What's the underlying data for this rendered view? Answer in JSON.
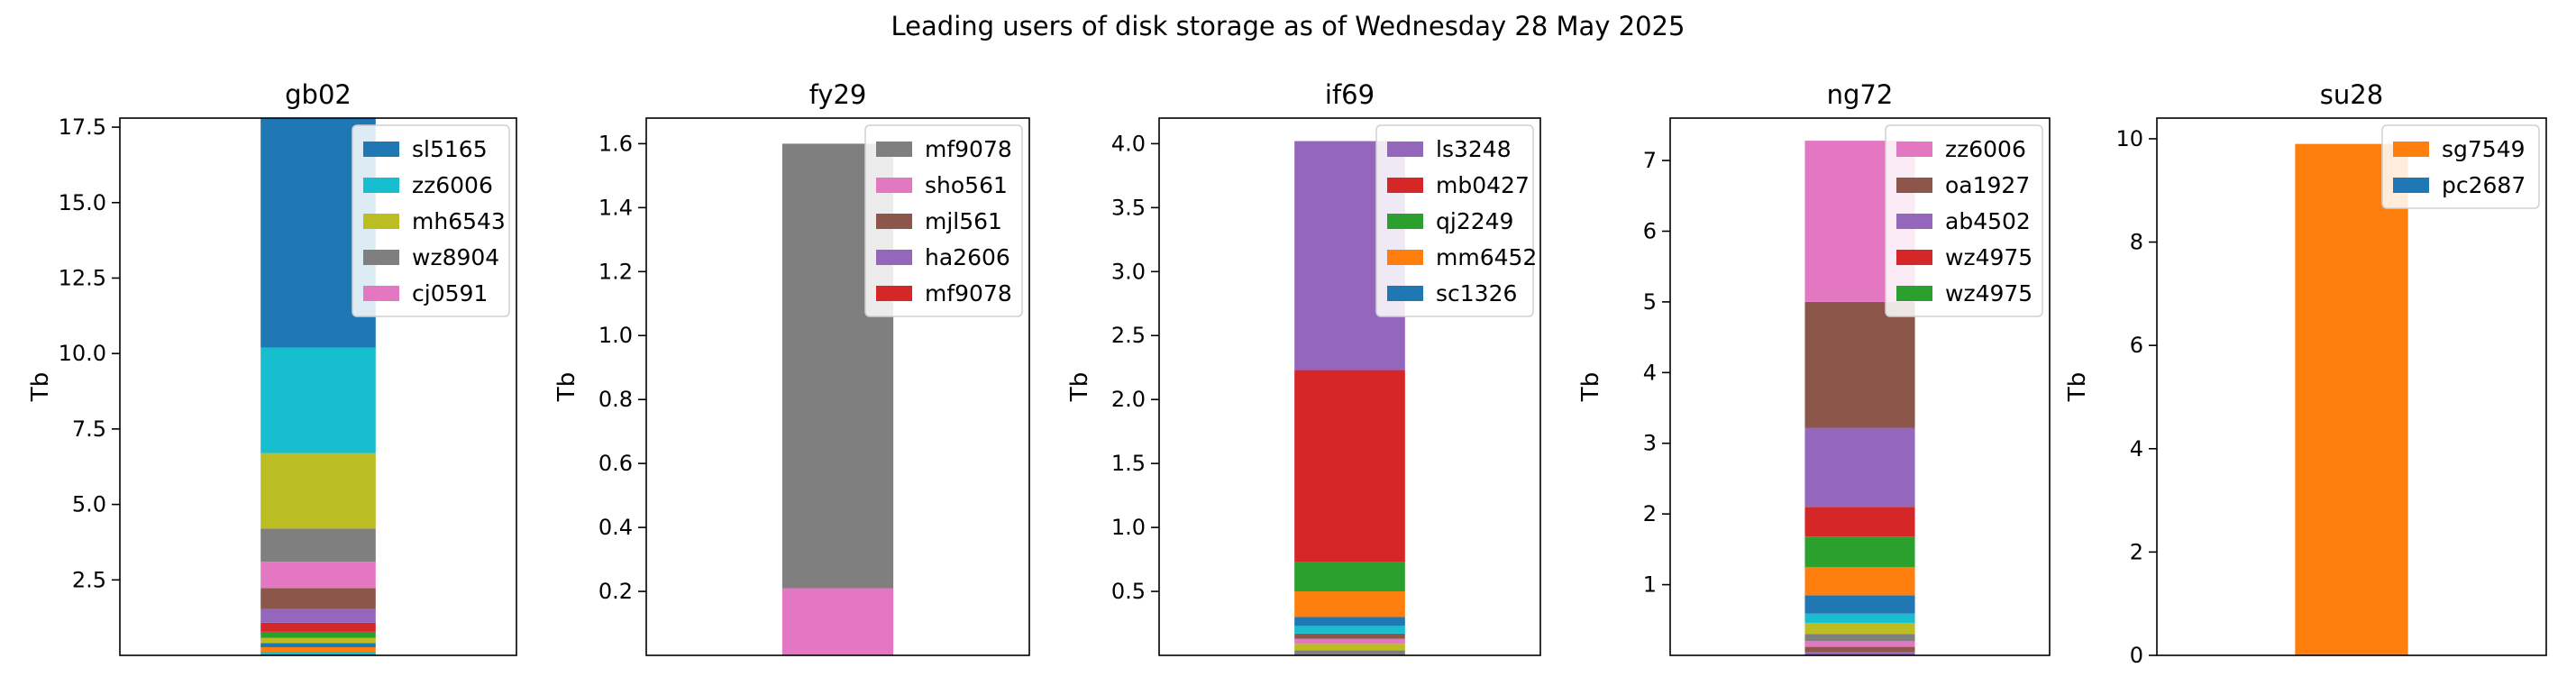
{
  "figure": {
    "title": "Leading users of disk storage as of  Wednesday 28 May 2025"
  },
  "chart_data": [
    {
      "type": "bar",
      "stacked": true,
      "title": "gb02",
      "xlabel": "",
      "ylabel": "Tb",
      "ylim": [
        0,
        17.8
      ],
      "yticks": [
        2.5,
        5.0,
        7.5,
        10.0,
        12.5,
        15.0,
        17.5
      ],
      "tick_decimals": 1,
      "legend_position": "top-right",
      "series": [
        {
          "name": "",
          "color": "#17becf",
          "values": [
            0.12
          ]
        },
        {
          "name": "",
          "color": "#ff7f0e",
          "values": [
            0.15
          ]
        },
        {
          "name": "",
          "color": "#1f77b4",
          "values": [
            0.14
          ]
        },
        {
          "name": "",
          "color": "#bcbd22",
          "values": [
            0.17
          ]
        },
        {
          "name": "",
          "color": "#2ca02c",
          "values": [
            0.2
          ]
        },
        {
          "name": "",
          "color": "#d62728",
          "values": [
            0.3
          ]
        },
        {
          "name": "",
          "color": "#9467bd",
          "values": [
            0.45
          ]
        },
        {
          "name": "",
          "color": "#8c564b",
          "values": [
            0.7
          ]
        },
        {
          "name": "cj0591",
          "color": "#e377c2",
          "values": [
            0.87
          ]
        },
        {
          "name": "wz8904",
          "color": "#7f7f7f",
          "values": [
            1.1
          ]
        },
        {
          "name": "mh6543",
          "color": "#bcbd22",
          "values": [
            2.5
          ]
        },
        {
          "name": "zz6006",
          "color": "#17becf",
          "values": [
            3.5
          ]
        },
        {
          "name": "sl5165",
          "color": "#1f77b4",
          "values": [
            7.6
          ]
        }
      ],
      "legend_order": [
        "sl5165",
        "zz6006",
        "mh6543",
        "wz8904",
        "cj0591"
      ]
    },
    {
      "type": "bar",
      "stacked": true,
      "title": "fy29",
      "xlabel": "",
      "ylabel": "Tb",
      "ylim": [
        0,
        1.68
      ],
      "yticks": [
        0.2,
        0.4,
        0.6,
        0.8,
        1.0,
        1.2,
        1.4,
        1.6
      ],
      "tick_decimals": 1,
      "legend_position": "top-right",
      "series": [
        {
          "name": "mf9078",
          "color": "#d62728",
          "values": [
            0.0
          ]
        },
        {
          "name": "ha2606",
          "color": "#9467bd",
          "values": [
            0.0
          ]
        },
        {
          "name": "mjl561",
          "color": "#8c564b",
          "values": [
            0.0
          ]
        },
        {
          "name": "sho561",
          "color": "#e377c2",
          "values": [
            0.21
          ]
        },
        {
          "name": "mf9078",
          "color": "#7f7f7f",
          "values": [
            1.39
          ]
        }
      ],
      "legend_order": [
        "mf9078",
        "sho561",
        "mjl561",
        "ha2606",
        "mf9078"
      ],
      "legend_colors": [
        "#7f7f7f",
        "#e377c2",
        "#8c564b",
        "#9467bd",
        "#d62728"
      ]
    },
    {
      "type": "bar",
      "stacked": true,
      "title": "if69",
      "xlabel": "",
      "ylabel": "Tb",
      "ylim": [
        0,
        4.2
      ],
      "yticks": [
        0.5,
        1.0,
        1.5,
        2.0,
        2.5,
        3.0,
        3.5,
        4.0
      ],
      "tick_decimals": 1,
      "legend_position": "top-right",
      "series": [
        {
          "name": "",
          "color": "#7f7f7f",
          "values": [
            0.04
          ]
        },
        {
          "name": "",
          "color": "#bcbd22",
          "values": [
            0.05
          ]
        },
        {
          "name": "",
          "color": "#e377c2",
          "values": [
            0.04
          ]
        },
        {
          "name": "",
          "color": "#8c564b",
          "values": [
            0.04
          ]
        },
        {
          "name": "",
          "color": "#17becf",
          "values": [
            0.06
          ]
        },
        {
          "name": "sc1326",
          "color": "#1f77b4",
          "values": [
            0.07
          ]
        },
        {
          "name": "mm6452",
          "color": "#ff7f0e",
          "values": [
            0.2
          ]
        },
        {
          "name": "qj2249",
          "color": "#2ca02c",
          "values": [
            0.23
          ]
        },
        {
          "name": "mb0427",
          "color": "#d62728",
          "values": [
            1.5
          ]
        },
        {
          "name": "ls3248",
          "color": "#9467bd",
          "values": [
            1.79
          ]
        }
      ],
      "legend_order": [
        "ls3248",
        "mb0427",
        "qj2249",
        "mm6452",
        "sc1326"
      ]
    },
    {
      "type": "bar",
      "stacked": true,
      "title": "ng72",
      "xlabel": "",
      "ylabel": "Tb",
      "ylim": [
        0,
        7.6
      ],
      "yticks": [
        1,
        2,
        3,
        4,
        5,
        6,
        7
      ],
      "tick_decimals": 0,
      "legend_position": "top-right",
      "series": [
        {
          "name": "",
          "color": "#9467bd",
          "values": [
            0.05
          ]
        },
        {
          "name": "",
          "color": "#8c564b",
          "values": [
            0.07
          ]
        },
        {
          "name": "",
          "color": "#e377c2",
          "values": [
            0.08
          ]
        },
        {
          "name": "",
          "color": "#7f7f7f",
          "values": [
            0.1
          ]
        },
        {
          "name": "",
          "color": "#bcbd22",
          "values": [
            0.16
          ]
        },
        {
          "name": "",
          "color": "#17becf",
          "values": [
            0.13
          ]
        },
        {
          "name": "",
          "color": "#1f77b4",
          "values": [
            0.26
          ]
        },
        {
          "name": "",
          "color": "#ff7f0e",
          "values": [
            0.4
          ]
        },
        {
          "name": "wz4975",
          "color": "#2ca02c",
          "values": [
            0.43
          ]
        },
        {
          "name": "wz4975",
          "color": "#d62728",
          "values": [
            0.42
          ]
        },
        {
          "name": "ab4502",
          "color": "#9467bd",
          "values": [
            1.12
          ]
        },
        {
          "name": "oa1927",
          "color": "#8c564b",
          "values": [
            1.78
          ]
        },
        {
          "name": "zz6006",
          "color": "#e377c2",
          "values": [
            2.28
          ]
        }
      ],
      "legend_order": [
        "zz6006",
        "oa1927",
        "ab4502",
        "wz4975",
        "wz4975"
      ],
      "legend_colors": [
        "#e377c2",
        "#8c564b",
        "#9467bd",
        "#d62728",
        "#2ca02c"
      ]
    },
    {
      "type": "bar",
      "stacked": true,
      "title": "su28",
      "xlabel": "",
      "ylabel": "Tb",
      "ylim": [
        0,
        10.4
      ],
      "yticks": [
        0,
        2,
        4,
        6,
        8,
        10
      ],
      "tick_decimals": 0,
      "legend_position": "top-right",
      "series": [
        {
          "name": "pc2687",
          "color": "#1f77b4",
          "values": [
            0.0
          ]
        },
        {
          "name": "sg7549",
          "color": "#ff7f0e",
          "values": [
            9.9
          ]
        }
      ],
      "legend_order": [
        "sg7549",
        "pc2687"
      ],
      "legend_colors": [
        "#ff7f0e",
        "#1f77b4"
      ]
    }
  ]
}
